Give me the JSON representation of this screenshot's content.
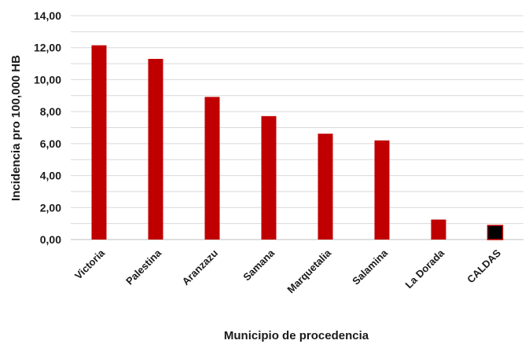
{
  "chart_data": {
    "type": "bar",
    "title": "",
    "xlabel": "Municipio de procedencia",
    "ylabel": "Incidencia pro 100,000 HB",
    "categories": [
      "Victoria",
      "Palestina",
      "Aranzazu",
      "Samana",
      "Marquetalia",
      "Salamina",
      "La Dorada",
      "CALDAS"
    ],
    "values": [
      12.15,
      11.3,
      8.92,
      7.72,
      6.62,
      6.2,
      1.25,
      0.88
    ],
    "ylim": [
      0,
      14
    ],
    "yticks": [
      "0,00",
      "2,00",
      "4,00",
      "6,00",
      "8,00",
      "10,00",
      "12,00",
      "14,00"
    ],
    "grid": true,
    "colors": {
      "bar": "#c00000",
      "highlight_bar": "#000000",
      "highlight_category": "CALDAS"
    }
  }
}
